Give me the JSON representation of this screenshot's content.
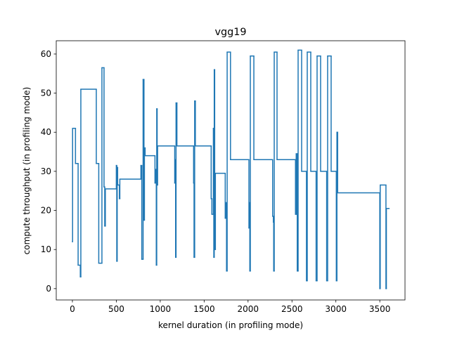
{
  "chart_data": {
    "type": "step",
    "title": "vgg19",
    "xlabel": "kernel duration (in profiling mode)",
    "ylabel": "compute throughput (in profiling mode)",
    "x": [
      0,
      2,
      35,
      65,
      90,
      96,
      272,
      300,
      336,
      360,
      368,
      375,
      500,
      505,
      510,
      515,
      535,
      540,
      780,
      790,
      805,
      815,
      820,
      828,
      940,
      948,
      955,
      960,
      965,
      970,
      1165,
      1170,
      1175,
      1180,
      1190,
      1380,
      1385,
      1392,
      1400,
      1580,
      1588,
      1605,
      1610,
      1615,
      1620,
      1628,
      1740,
      1748,
      1755,
      1762,
      1800,
      2010,
      2015,
      2020,
      2026,
      2066,
      2280,
      2288,
      2292,
      2298,
      2330,
      2540,
      2548,
      2560,
      2570,
      2610,
      2665,
      2674,
      2714,
      2775,
      2786,
      2826,
      2895,
      2906,
      2946,
      3005,
      3012,
      3020,
      3500,
      3505,
      3570,
      3575,
      3605
    ],
    "series": [
      {
        "color": "#1f77b4",
        "values": [
          12,
          41,
          32,
          6,
          3,
          51,
          32,
          6.5,
          56.5,
          26,
          16,
          25.5,
          31.5,
          7,
          31,
          26.5,
          23,
          28,
          31.5,
          7.5,
          53.5,
          17.5,
          36,
          34,
          27,
          30.5,
          6,
          46,
          26.5,
          36.5,
          27,
          33,
          8,
          47.5,
          36.5,
          27,
          8,
          48,
          36.5,
          23,
          19,
          41,
          8,
          56,
          10,
          29.5,
          18,
          22,
          4.5,
          60.5,
          33,
          15.5,
          22,
          4.5,
          59.5,
          33,
          18.5,
          17,
          4.5,
          60.5,
          33,
          19,
          34.5,
          4.5,
          61,
          30,
          2,
          60.5,
          30,
          2,
          59.5,
          30,
          2,
          59.5,
          30,
          2,
          40,
          24.5,
          0,
          26.5,
          0,
          20.5,
          20.5
        ]
      }
    ],
    "xlim": [
      -184,
      3787
    ],
    "ylim": [
      -2.9,
      63.4
    ],
    "xticks": [
      0,
      500,
      1000,
      1500,
      2000,
      2500,
      3000,
      3500
    ],
    "yticks": [
      0,
      10,
      20,
      30,
      40,
      50,
      60
    ]
  }
}
